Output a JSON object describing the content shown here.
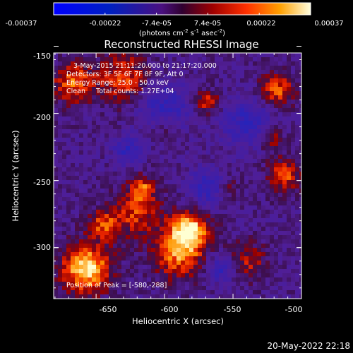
{
  "colorbar": {
    "ticks": [
      "-0.00037",
      "-0.00022",
      "-7.4e-05",
      "7.4e-05",
      "0.00022",
      "0.00037"
    ],
    "unit_line1": "(photons cm",
    "unit_sup1": "-2",
    "unit_mid1": " s",
    "unit_sup2": "-1",
    "unit_mid2": " asec",
    "unit_sup3": "-2",
    "unit_end": ")"
  },
  "title": "Reconstructed RHESSI Image",
  "axes": {
    "xlabel": "Heliocentric X (arcsec)",
    "ylabel": "Heliocentric Y (arcsec)",
    "xticks": [
      "-650",
      "-600",
      "-550",
      "-500"
    ],
    "yticks": [
      "-150",
      "-200",
      "-250",
      "-300"
    ],
    "xrange": [
      -681,
      -500
    ],
    "yrange": [
      -155,
      -338
    ]
  },
  "annotations": {
    "time_range": "3-May-2015 21:11:20.000 to 21:17:20.000",
    "detectors": "Detectors: 3F 5F 6F 7F 8F 9F, Att 0",
    "energy_range": "Energy Range: 25.0 - 50.0 keV",
    "method": "Clean     Total counts: 1.27E+04",
    "peak": "Position of Peak = [-580,-288]"
  },
  "footer_timestamp": "20-May-2022 22:18"
}
